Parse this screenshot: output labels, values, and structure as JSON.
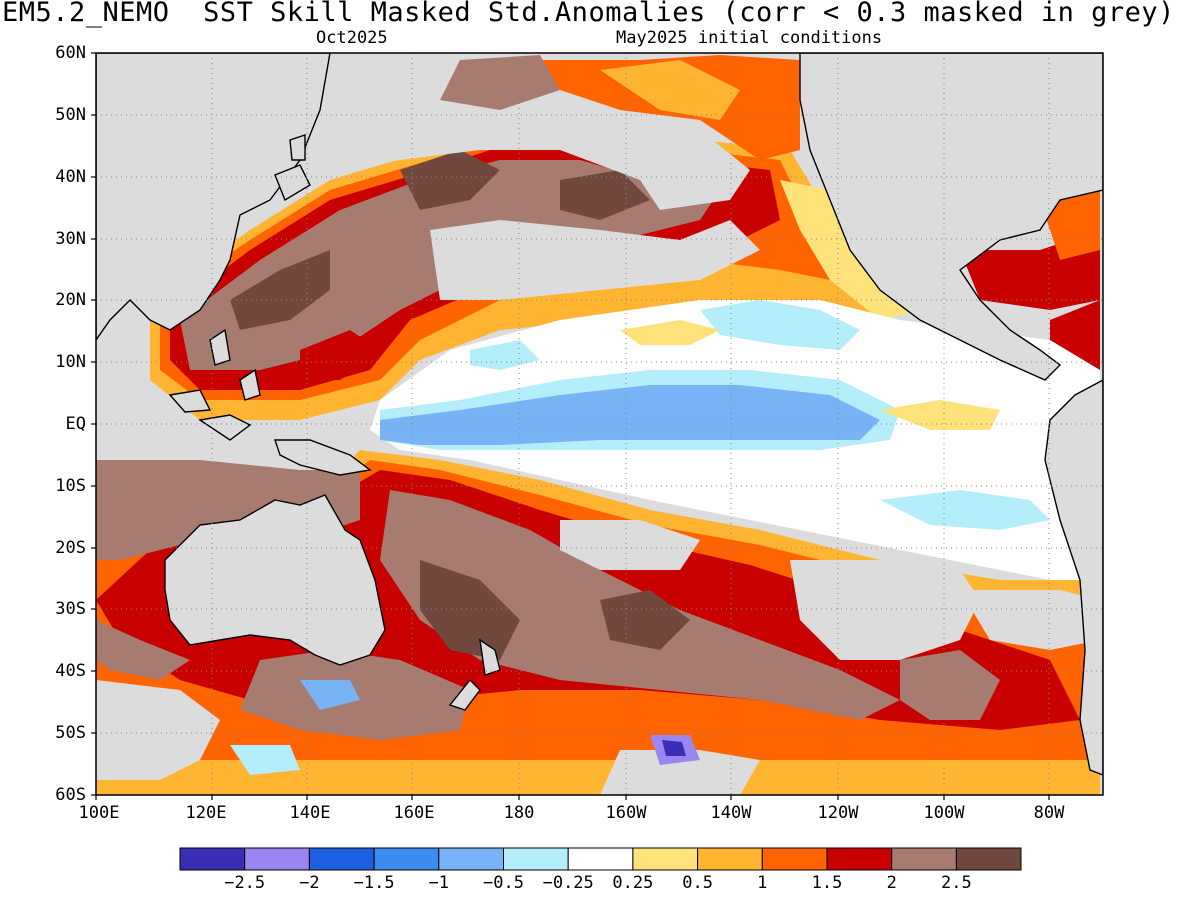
{
  "header": {
    "title": "EM5.2_NEMO  SST Skill Masked Std.Anomalies (corr < 0.3 masked in grey)",
    "target_month": "Oct2025",
    "init_conditions": "May2025 initial conditions"
  },
  "map": {
    "region": "Pacific Ocean",
    "lat_labels": [
      "60N",
      "50N",
      "40N",
      "30N",
      "20N",
      "10N",
      "EQ",
      "10S",
      "20S",
      "30S",
      "40S",
      "50S",
      "60S"
    ],
    "lon_labels": [
      "100E",
      "120E",
      "140E",
      "160E",
      "180",
      "160W",
      "140W",
      "120W",
      "100W",
      "80W"
    ],
    "mask_color": "#dcdcdc",
    "land_color": "#dcdcdc",
    "grid": "dotted"
  },
  "colorbar": {
    "colors": [
      "#3a2fb4",
      "#9b85f0",
      "#1e5ee0",
      "#3c8cf0",
      "#78b4f5",
      "#b4eefa",
      "#ffffff",
      "#ffe27a",
      "#ffb432",
      "#ff6400",
      "#c80000",
      "#a87b70",
      "#70483e"
    ],
    "labels": [
      "−2.5",
      "−2",
      "−1.5",
      "−1",
      "−0.5",
      "−0.25",
      "0.25",
      "0.5",
      "1",
      "1.5",
      "2",
      "2.5"
    ]
  }
}
